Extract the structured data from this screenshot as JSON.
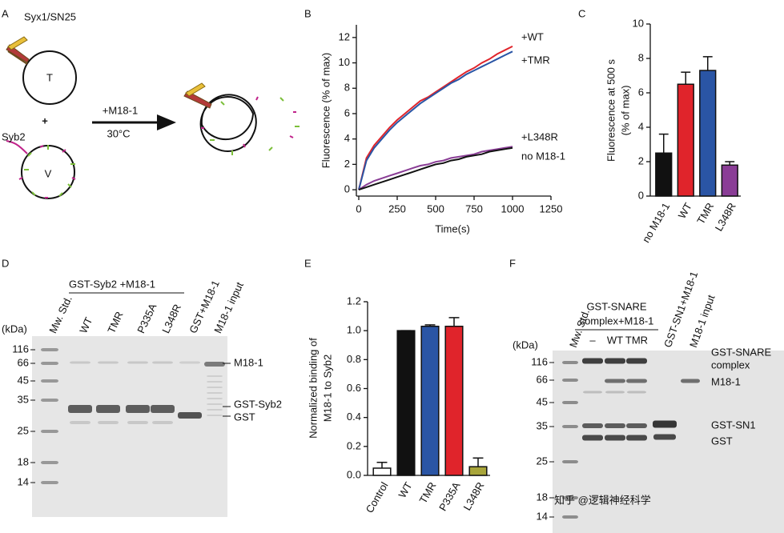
{
  "panel_labels": [
    "A",
    "B",
    "C",
    "D",
    "E",
    "F"
  ],
  "diagram": {
    "syx_label": "Syx1/SN25",
    "t_label": "T",
    "plus": "+",
    "syb_label": "Syb2",
    "v_label": "V",
    "reagent": "+M18-1",
    "temperature": "30°C"
  },
  "chart_data": [
    {
      "type": "line",
      "y_label": "Fluorescence (% of max)",
      "x_label": "Time(s)",
      "x": [
        0,
        50,
        100,
        150,
        200,
        250,
        300,
        350,
        400,
        450,
        500,
        550,
        600,
        650,
        700,
        750,
        800,
        850,
        900,
        950,
        1000
      ],
      "series": [
        {
          "name": "+WT",
          "color": "#e0242b",
          "values": [
            0,
            2.5,
            3.5,
            4.2,
            4.9,
            5.5,
            6.0,
            6.5,
            7.0,
            7.3,
            7.7,
            8.1,
            8.5,
            8.9,
            9.3,
            9.6,
            10.0,
            10.3,
            10.7,
            11.0,
            11.3
          ]
        },
        {
          "name": "+TMR",
          "color": "#2a55a5",
          "values": [
            0,
            2.3,
            3.3,
            4.0,
            4.7,
            5.3,
            5.8,
            6.3,
            6.8,
            7.2,
            7.6,
            8.0,
            8.4,
            8.7,
            9.1,
            9.4,
            9.7,
            10.0,
            10.3,
            10.6,
            10.9
          ]
        },
        {
          "name": "+L348R",
          "color": "#8a3d96",
          "values": [
            0,
            0.4,
            0.7,
            0.9,
            1.1,
            1.3,
            1.5,
            1.7,
            1.9,
            2.0,
            2.2,
            2.3,
            2.5,
            2.6,
            2.7,
            2.8,
            3.0,
            3.1,
            3.2,
            3.3,
            3.4
          ]
        },
        {
          "name": "no M18-1",
          "color": "#111111",
          "values": [
            0,
            0.2,
            0.4,
            0.6,
            0.8,
            1.0,
            1.2,
            1.4,
            1.6,
            1.8,
            2.0,
            2.1,
            2.3,
            2.4,
            2.6,
            2.7,
            2.8,
            3.0,
            3.1,
            3.2,
            3.3
          ]
        }
      ],
      "xlim": [
        0,
        1250
      ],
      "xticks": [
        0,
        250,
        500,
        750,
        1000,
        1250
      ],
      "ylim": [
        -0.5,
        13
      ],
      "yticks": [
        0,
        2,
        4,
        6,
        8,
        10,
        12
      ]
    },
    {
      "type": "bar",
      "y_label": [
        "Fluorescence at 500 s",
        "(% of max)"
      ],
      "categories": [
        "no M18-1",
        "WT",
        "TMR",
        "L348R"
      ],
      "values": [
        2.5,
        6.5,
        7.3,
        1.8
      ],
      "errors": [
        1.1,
        0.7,
        0.8,
        0.2
      ],
      "colors": [
        "#111111",
        "#e0242b",
        "#2a55a5",
        "#8a3d96"
      ],
      "ylim": [
        0,
        10
      ],
      "yticks": [
        0,
        2,
        4,
        6,
        8,
        10
      ]
    },
    {
      "type": "bar",
      "y_label": [
        "Normalized binding of",
        "M18-1 to Syb2"
      ],
      "categories": [
        "Control",
        "WT",
        "TMR",
        "P335A",
        "L348R"
      ],
      "values": [
        0.05,
        1.0,
        1.03,
        1.03,
        0.06
      ],
      "errors": [
        0.04,
        0,
        0.01,
        0.06,
        0.06
      ],
      "colors": [
        "#ffffff",
        "#111111",
        "#2a55a5",
        "#e0242b",
        "#a8a53a"
      ],
      "ylim": [
        0,
        1.2
      ],
      "yticks": [
        {
          "value": 0,
          "label": "0.0"
        },
        0.2,
        0.4,
        0.6,
        0.8,
        {
          "value": 1,
          "label": "1.0"
        },
        1.2
      ]
    }
  ],
  "gel_d": {
    "header": "GST-Syb2 +M18-1",
    "unit": "(kDa)",
    "lanes": [
      "Mw. Std.",
      "WT",
      "TMR",
      "P335A",
      "L348R",
      "GST+M18-1",
      "M18-1 input"
    ],
    "markers": [
      116,
      66,
      45,
      35,
      25,
      18,
      14
    ],
    "bands": [
      "M18-1",
      "GST-Syb2",
      "GST"
    ]
  },
  "gel_f": {
    "header": [
      "GST-SNARE",
      "complex+M18-1"
    ],
    "unit": "(kDa)",
    "lanes": [
      "Mw. Std.",
      "–",
      "WT",
      "TMR",
      "GST-SN1+M18-1",
      "M18-1 input"
    ],
    "markers": [
      116,
      66,
      45,
      35,
      25,
      18,
      14
    ],
    "bands": [
      [
        "GST-SNARE",
        "complex"
      ],
      "M18-1",
      "GST-SN1",
      "GST"
    ]
  },
  "watermark": "知乎 @逻辑神经科学"
}
